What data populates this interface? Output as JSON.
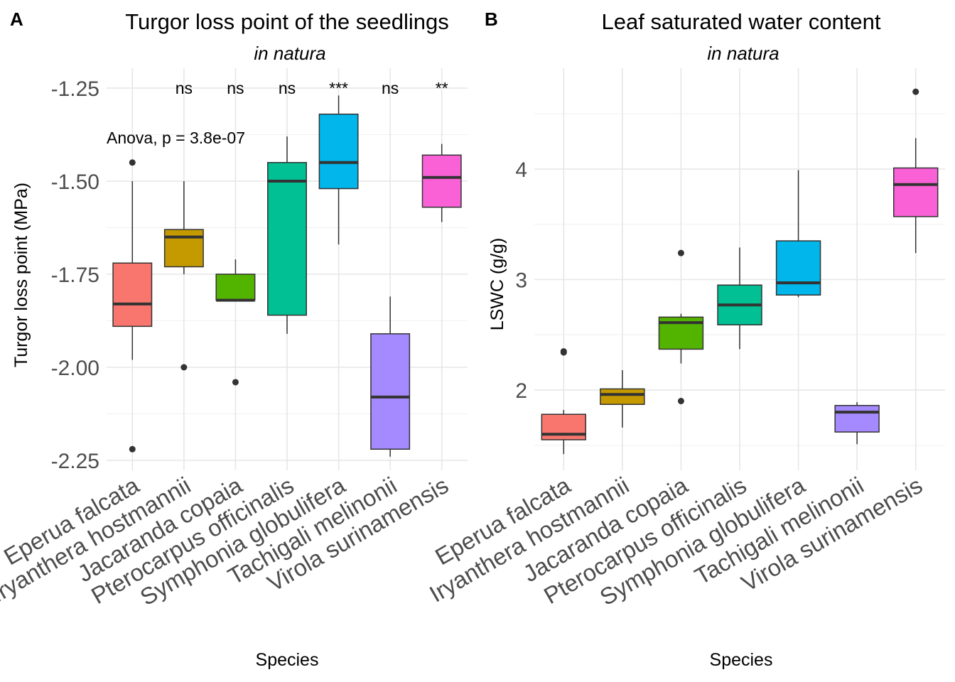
{
  "chart_data": [
    {
      "type": "box",
      "panel_label": "A",
      "title": "Turgor loss point of the seedlings",
      "subtitle": "in natura",
      "xlabel": "Species",
      "ylabel": "Turgor loss point (MPa)",
      "ylim": [
        -2.3,
        -1.16
      ],
      "yticks": [
        -1.25,
        -1.5,
        -1.75,
        -2.0,
        -2.25
      ],
      "ytick_labels": [
        "-1.25",
        "-1.50",
        "-1.75",
        "-2.00",
        "-2.25"
      ],
      "grid": true,
      "annotation": "Anova, p = 3.8e-07",
      "categories": [
        "Eperua falcata",
        "Iryanthera hostmannii",
        "Jacaranda copaia",
        "Pterocarpus officinalis",
        "Symphonia globulifera",
        "Tachigali melinonii",
        "Virola surinamensis"
      ],
      "significance": [
        "",
        "ns",
        "ns",
        "ns",
        "***",
        "ns",
        "**"
      ],
      "colors": [
        "#F8766D",
        "#C49A00",
        "#53B400",
        "#00C094",
        "#00B6EB",
        "#A58AFF",
        "#FB61D7"
      ],
      "boxes": [
        {
          "q1": -1.89,
          "median": -1.83,
          "q3": -1.72,
          "whisker_low": -1.98,
          "whisker_high": -1.5,
          "outliers": [
            -1.45,
            -2.22
          ]
        },
        {
          "q1": -1.73,
          "median": -1.65,
          "q3": -1.63,
          "whisker_low": -1.75,
          "whisker_high": -1.5,
          "outliers": [
            -2.0
          ]
        },
        {
          "q1": -1.82,
          "median": -1.82,
          "q3": -1.75,
          "whisker_low": -1.82,
          "whisker_high": -1.71,
          "outliers": [
            -2.04
          ]
        },
        {
          "q1": -1.86,
          "median": -1.5,
          "q3": -1.45,
          "whisker_low": -1.91,
          "whisker_high": -1.38,
          "outliers": []
        },
        {
          "q1": -1.52,
          "median": -1.45,
          "q3": -1.32,
          "whisker_low": -1.67,
          "whisker_high": -1.27,
          "outliers": []
        },
        {
          "q1": -2.22,
          "median": -2.08,
          "q3": -1.91,
          "whisker_low": -2.24,
          "whisker_high": -1.81,
          "outliers": []
        },
        {
          "q1": -1.57,
          "median": -1.49,
          "q3": -1.43,
          "whisker_low": -1.61,
          "whisker_high": -1.4,
          "outliers": []
        }
      ]
    },
    {
      "type": "box",
      "panel_label": "B",
      "title": "Leaf saturated water content",
      "subtitle": "in natura",
      "xlabel": "Species",
      "ylabel": "LSWC (g/g)",
      "ylim": [
        1.38,
        4.92
      ],
      "yticks": [
        2,
        3,
        4
      ],
      "ytick_labels": [
        "2",
        "3",
        "4"
      ],
      "grid": true,
      "categories": [
        "Eperua falcata",
        "Iryanthera hostmannii",
        "Jacaranda copaia",
        "Pterocarpus officinalis",
        "Symphonia globulifera",
        "Tachigali melinonii",
        "Virola surinamensis"
      ],
      "colors": [
        "#F8766D",
        "#C49A00",
        "#53B400",
        "#00C094",
        "#00B6EB",
        "#A58AFF",
        "#FB61D7"
      ],
      "boxes": [
        {
          "q1": 1.55,
          "median": 1.6,
          "q3": 1.78,
          "whisker_low": 1.42,
          "whisker_high": 1.82,
          "outliers": [
            2.34,
            2.35
          ]
        },
        {
          "q1": 1.87,
          "median": 1.96,
          "q3": 2.01,
          "whisker_low": 1.66,
          "whisker_high": 2.18,
          "outliers": []
        },
        {
          "q1": 2.37,
          "median": 2.61,
          "q3": 2.66,
          "whisker_low": 2.24,
          "whisker_high": 2.69,
          "outliers": [
            3.24,
            1.9
          ]
        },
        {
          "q1": 2.59,
          "median": 2.77,
          "q3": 2.95,
          "whisker_low": 2.37,
          "whisker_high": 3.29,
          "outliers": []
        },
        {
          "q1": 2.86,
          "median": 2.97,
          "q3": 3.35,
          "whisker_low": 2.84,
          "whisker_high": 3.99,
          "outliers": []
        },
        {
          "q1": 1.62,
          "median": 1.8,
          "q3": 1.86,
          "whisker_low": 1.51,
          "whisker_high": 1.89,
          "outliers": []
        },
        {
          "q1": 3.57,
          "median": 3.86,
          "q3": 4.01,
          "whisker_low": 3.24,
          "whisker_high": 4.28,
          "outliers": [
            4.7
          ]
        }
      ]
    }
  ]
}
